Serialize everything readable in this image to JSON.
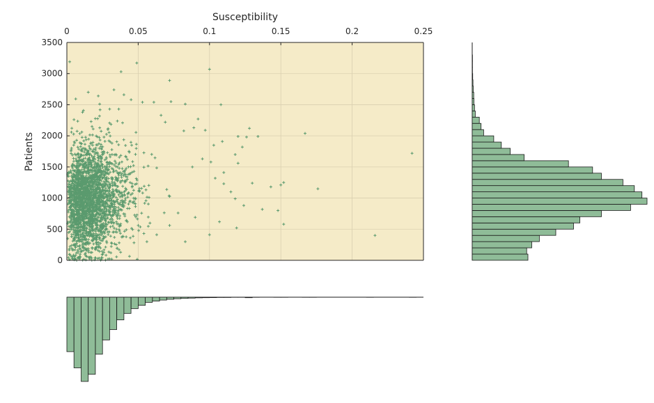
{
  "chart_data": {
    "type": "scatter",
    "title": "",
    "xlabel": "Susceptibility",
    "ylabel": "Patients",
    "xlim": [
      0,
      0.25
    ],
    "ylim": [
      0,
      3500
    ],
    "x_ticks": [
      "0",
      "0.05",
      "0.1",
      "0.15",
      "0.2",
      "0.25"
    ],
    "y_ticks": [
      "0",
      "500",
      "1000",
      "1500",
      "2000",
      "2500",
      "3000",
      "3500"
    ],
    "grid": true,
    "colors": {
      "point": "#5a9a6e",
      "plot_background": "#f5ebc8",
      "hist_fill": "#8fbc98"
    },
    "x_axis_position": "top",
    "scatter_points": [
      [
        0.002,
        3190
      ],
      [
        0.038,
        3030
      ],
      [
        0.049,
        3170
      ],
      [
        0.1,
        3070
      ],
      [
        0.072,
        2890
      ],
      [
        0.015,
        2700
      ],
      [
        0.022,
        2640
      ],
      [
        0.033,
        2740
      ],
      [
        0.04,
        2660
      ],
      [
        0.045,
        2580
      ],
      [
        0.053,
        2540
      ],
      [
        0.061,
        2540
      ],
      [
        0.073,
        2550
      ],
      [
        0.083,
        2510
      ],
      [
        0.108,
        2500
      ],
      [
        0.023,
        2510
      ],
      [
        0.03,
        2430
      ],
      [
        0.011,
        2380
      ],
      [
        0.005,
        2260
      ],
      [
        0.017,
        2230
      ],
      [
        0.066,
        2330
      ],
      [
        0.092,
        2270
      ],
      [
        0.069,
        2220
      ],
      [
        0.128,
        2120
      ],
      [
        0.097,
        2090
      ],
      [
        0.082,
        2080
      ],
      [
        0.089,
        2130
      ],
      [
        0.12,
        1990
      ],
      [
        0.134,
        1990
      ],
      [
        0.126,
        1980
      ],
      [
        0.167,
        2040
      ],
      [
        0.242,
        1720
      ],
      [
        0.109,
        1910
      ],
      [
        0.103,
        1850
      ],
      [
        0.123,
        1820
      ],
      [
        0.118,
        1700
      ],
      [
        0.12,
        1560
      ],
      [
        0.095,
        1630
      ],
      [
        0.101,
        1580
      ],
      [
        0.088,
        1500
      ],
      [
        0.11,
        1410
      ],
      [
        0.13,
        1240
      ],
      [
        0.143,
        1180
      ],
      [
        0.152,
        1250
      ],
      [
        0.15,
        1210
      ],
      [
        0.176,
        1150
      ],
      [
        0.104,
        1320
      ],
      [
        0.11,
        1230
      ],
      [
        0.115,
        1100
      ],
      [
        0.118,
        990
      ],
      [
        0.124,
        880
      ],
      [
        0.137,
        820
      ],
      [
        0.148,
        800
      ],
      [
        0.152,
        580
      ],
      [
        0.119,
        520
      ],
      [
        0.107,
        620
      ],
      [
        0.1,
        410
      ],
      [
        0.083,
        300
      ],
      [
        0.216,
        400
      ],
      [
        0.09,
        690
      ],
      [
        0.078,
        760
      ],
      [
        0.072,
        560
      ],
      [
        0.063,
        410
      ],
      [
        0.054,
        430
      ]
    ],
    "cluster": {
      "center_x": 0.016,
      "center_y": 980,
      "spread_x": 0.014,
      "spread_y": 430,
      "count": 2600
    },
    "y_histogram": {
      "orientation": "horizontal",
      "bin_width": 100,
      "bins": [
        [
          0,
          220
        ],
        [
          100,
          215
        ],
        [
          200,
          235
        ],
        [
          300,
          265
        ],
        [
          400,
          330
        ],
        [
          500,
          400
        ],
        [
          600,
          425
        ],
        [
          700,
          510
        ],
        [
          800,
          625
        ],
        [
          900,
          690
        ],
        [
          1000,
          670
        ],
        [
          1100,
          640
        ],
        [
          1200,
          595
        ],
        [
          1300,
          510
        ],
        [
          1400,
          475
        ],
        [
          1500,
          380
        ],
        [
          1600,
          205
        ],
        [
          1700,
          150
        ],
        [
          1800,
          115
        ],
        [
          1900,
          85
        ],
        [
          2000,
          45
        ],
        [
          2100,
          35
        ],
        [
          2200,
          28
        ],
        [
          2300,
          12
        ],
        [
          2400,
          9
        ],
        [
          2500,
          7
        ],
        [
          2600,
          6
        ],
        [
          2700,
          4
        ],
        [
          2800,
          3
        ],
        [
          2900,
          2
        ],
        [
          3000,
          1
        ],
        [
          3100,
          1
        ],
        [
          3200,
          1
        ],
        [
          3300,
          0
        ],
        [
          3400,
          0
        ]
      ]
    },
    "x_histogram": {
      "orientation": "vertical-down",
      "bin_width": 0.005,
      "bins": [
        [
          0.0,
          420
        ],
        [
          0.005,
          545
        ],
        [
          0.01,
          650
        ],
        [
          0.015,
          595
        ],
        [
          0.02,
          440
        ],
        [
          0.025,
          330
        ],
        [
          0.03,
          250
        ],
        [
          0.035,
          175
        ],
        [
          0.04,
          125
        ],
        [
          0.045,
          88
        ],
        [
          0.05,
          63
        ],
        [
          0.055,
          40
        ],
        [
          0.06,
          30
        ],
        [
          0.065,
          22
        ],
        [
          0.07,
          16
        ],
        [
          0.075,
          12
        ],
        [
          0.08,
          9
        ],
        [
          0.085,
          7
        ],
        [
          0.09,
          5
        ],
        [
          0.095,
          4
        ],
        [
          0.1,
          3
        ],
        [
          0.105,
          2
        ],
        [
          0.11,
          2
        ],
        [
          0.115,
          1
        ],
        [
          0.12,
          1
        ],
        [
          0.125,
          4
        ],
        [
          0.13,
          1
        ],
        [
          0.135,
          0
        ],
        [
          0.14,
          0
        ],
        [
          0.145,
          1
        ],
        [
          0.15,
          1
        ],
        [
          0.155,
          0
        ],
        [
          0.16,
          0
        ],
        [
          0.165,
          1
        ],
        [
          0.17,
          1
        ],
        [
          0.175,
          0
        ],
        [
          0.18,
          0
        ],
        [
          0.185,
          0
        ],
        [
          0.19,
          0
        ],
        [
          0.195,
          0
        ],
        [
          0.2,
          0
        ],
        [
          0.205,
          0
        ],
        [
          0.21,
          1
        ],
        [
          0.215,
          0
        ],
        [
          0.22,
          0
        ],
        [
          0.225,
          0
        ],
        [
          0.23,
          0
        ],
        [
          0.235,
          0
        ],
        [
          0.24,
          1
        ],
        [
          0.245,
          0
        ]
      ]
    }
  }
}
